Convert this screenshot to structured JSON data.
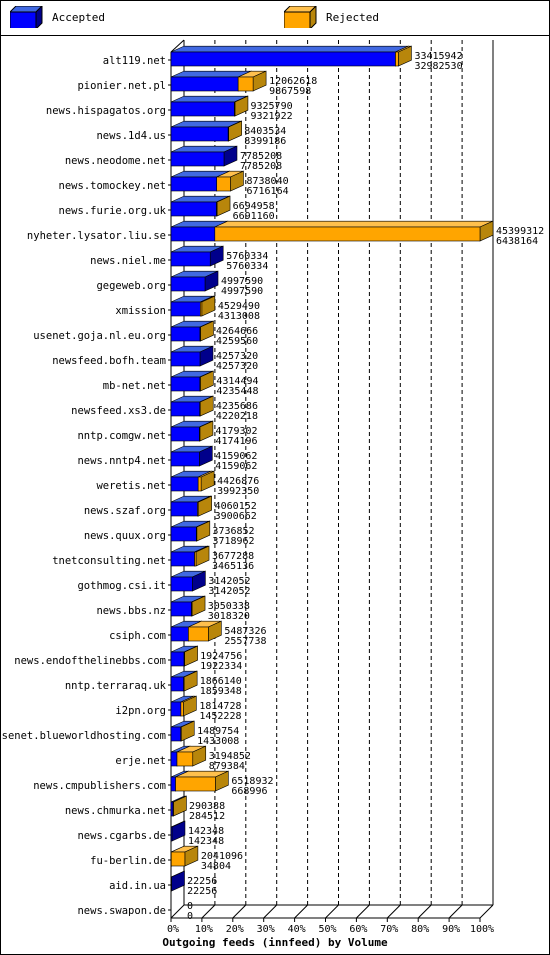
{
  "legend": {
    "accepted": "Accepted",
    "rejected": "Rejected"
  },
  "colors": {
    "accepted": "#0000ff",
    "accepted_dark": "#00008b",
    "rejected": "#ffa500",
    "rejected_dark": "#b8860b"
  },
  "chart_data": {
    "type": "bar",
    "orientation": "horizontal",
    "xlabel": "Outgoing feeds (innfeed) by Volume",
    "ticks": [
      "0%",
      "10%",
      "20%",
      "30%",
      "40%",
      "50%",
      "60%",
      "70%",
      "80%",
      "90%",
      "100%"
    ],
    "xlim": [
      0,
      45399312
    ],
    "legend_position": "top",
    "grid": true,
    "categories": [
      "alt119.net",
      "pionier.net.pl",
      "news.hispagatos.org",
      "news.1d4.us",
      "news.neodome.net",
      "news.tomockey.net",
      "news.furie.org.uk",
      "nyheter.lysator.liu.se",
      "news.niel.me",
      "gegeweb.org",
      "xmission",
      "usenet.goja.nl.eu.org",
      "newsfeed.bofh.team",
      "mb-net.net",
      "newsfeed.xs3.de",
      "nntp.comgw.net",
      "news.nntp4.net",
      "weretis.net",
      "news.szaf.org",
      "news.quux.org",
      "tnetconsulting.net",
      "gothmog.csi.it",
      "news.bbs.nz",
      "csiph.com",
      "news.endofthelinebbs.com",
      "nntp.terraraq.uk",
      "i2pn.org",
      "usenet.blueworldhosting.com",
      "erje.net",
      "news.cmpublishers.com",
      "news.chmurka.net",
      "news.cgarbs.de",
      "fu-berlin.de",
      "aid.in.ua",
      "news.swapon.de"
    ],
    "series": [
      {
        "name": "Accepted",
        "values": [
          32982530,
          9867598,
          9321922,
          8399186,
          7785208,
          6716164,
          6691160,
          6438164,
          5760334,
          4997590,
          4313008,
          4259560,
          4257320,
          4235448,
          4220218,
          4174196,
          4159062,
          3992350,
          3900662,
          3718962,
          3465136,
          3142052,
          3018320,
          2557738,
          1922334,
          1859348,
          1452228,
          1433008,
          879384,
          668996,
          284512,
          142348,
          34804,
          22256,
          0
        ]
      },
      {
        "name": "Rejected",
        "values": [
          33415942,
          12062618,
          9325790,
          8403534,
          7785208,
          8738040,
          6694958,
          45399312,
          5760334,
          4997590,
          4529490,
          4264666,
          4257320,
          4314494,
          4235686,
          4179302,
          4159062,
          4426876,
          4060152,
          3736852,
          3677288,
          3142052,
          3050338,
          5487326,
          1924756,
          1866140,
          1814728,
          1489754,
          3194852,
          6518932,
          290388,
          142348,
          2041096,
          22256,
          0
        ]
      }
    ]
  }
}
